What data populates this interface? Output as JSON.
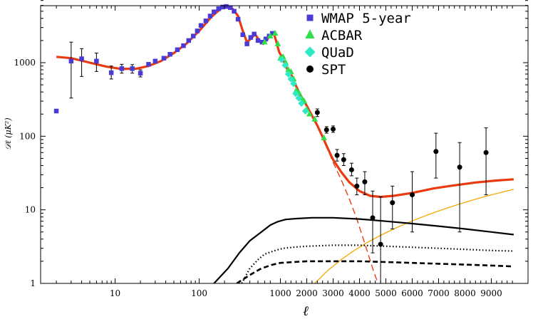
{
  "chart_data": {
    "type": "scatter",
    "title": "",
    "xlabel": "ℓ",
    "ylabel": "𝒟ℓ  (μK²)",
    "x_scale": "log-then-linear (log for ℓ < 800, linear above)",
    "y_scale": "log",
    "xlim": [
      2,
      9850
    ],
    "ylim": [
      1,
      7000
    ],
    "grid": false,
    "legend_position": "top-right",
    "x_tick_labels": [
      "10",
      "100",
      "1000",
      "2000",
      "3000",
      "4000",
      "5000",
      "6000",
      "7000",
      "8000",
      "9000"
    ],
    "x_ticks": [
      10,
      100,
      1000,
      2000,
      3000,
      4000,
      5000,
      6000,
      7000,
      8000,
      9000
    ],
    "y_tick_labels": [
      "1",
      "10",
      "100",
      "1000"
    ],
    "y_ticks": [
      1,
      10,
      100,
      1000
    ],
    "series": [
      {
        "name": "WMAP 5-year",
        "marker": "square",
        "color": "#4a3bd6",
        "points": [
          {
            "x": 2,
            "y": 220
          },
          {
            "x": 3,
            "y": 1050,
            "lo": 330,
            "hi": 1900
          },
          {
            "x": 4,
            "y": 1130,
            "lo": 650,
            "hi": 1550
          },
          {
            "x": 6,
            "y": 1050,
            "lo": 760,
            "hi": 1350
          },
          {
            "x": 9,
            "y": 730,
            "lo": 600,
            "hi": 900
          },
          {
            "x": 12,
            "y": 830,
            "lo": 720,
            "hi": 950
          },
          {
            "x": 16,
            "y": 830,
            "lo": 720,
            "hi": 940
          },
          {
            "x": 20,
            "y": 720,
            "lo": 640,
            "hi": 800
          },
          {
            "x": 25,
            "y": 950
          },
          {
            "x": 30,
            "y": 1050
          },
          {
            "x": 38,
            "y": 1150
          },
          {
            "x": 45,
            "y": 1300
          },
          {
            "x": 55,
            "y": 1500
          },
          {
            "x": 65,
            "y": 1700
          },
          {
            "x": 75,
            "y": 2000
          },
          {
            "x": 85,
            "y": 2300
          },
          {
            "x": 95,
            "y": 2700
          },
          {
            "x": 105,
            "y": 3200
          },
          {
            "x": 120,
            "y": 3700
          },
          {
            "x": 135,
            "y": 4300
          },
          {
            "x": 150,
            "y": 4900
          },
          {
            "x": 170,
            "y": 5400
          },
          {
            "x": 190,
            "y": 5700
          },
          {
            "x": 210,
            "y": 5800
          },
          {
            "x": 235,
            "y": 5600
          },
          {
            "x": 260,
            "y": 5000
          },
          {
            "x": 290,
            "y": 3900
          },
          {
            "x": 330,
            "y": 2400
          },
          {
            "x": 370,
            "y": 1800
          },
          {
            "x": 410,
            "y": 2200
          },
          {
            "x": 450,
            "y": 2450
          },
          {
            "x": 500,
            "y": 2000
          },
          {
            "x": 560,
            "y": 1900
          },
          {
            "x": 620,
            "y": 2100
          },
          {
            "x": 680,
            "y": 2300
          },
          {
            "x": 740,
            "y": 2500
          }
        ]
      },
      {
        "name": "ACBAR",
        "marker": "triangle",
        "color": "#2fe04a",
        "points": [
          {
            "x": 600,
            "y": 1900
          },
          {
            "x": 700,
            "y": 2300
          },
          {
            "x": 800,
            "y": 2500
          },
          {
            "x": 900,
            "y": 1800
          },
          {
            "x": 1000,
            "y": 1150
          },
          {
            "x": 1100,
            "y": 1200
          },
          {
            "x": 1200,
            "y": 1000
          },
          {
            "x": 1300,
            "y": 800
          },
          {
            "x": 1400,
            "y": 750
          },
          {
            "x": 1500,
            "y": 600
          },
          {
            "x": 1600,
            "y": 420
          },
          {
            "x": 1700,
            "y": 390
          },
          {
            "x": 1800,
            "y": 330
          },
          {
            "x": 1900,
            "y": 300
          },
          {
            "x": 2000,
            "y": 230
          },
          {
            "x": 2100,
            "y": 200
          },
          {
            "x": 2300,
            "y": 170
          },
          {
            "x": 2650,
            "y": 95
          }
        ]
      },
      {
        "name": "QUaD",
        "marker": "diamond",
        "color": "#2fe8c4",
        "points": [
          {
            "x": 1050,
            "y": 1100
          },
          {
            "x": 1180,
            "y": 920
          },
          {
            "x": 1300,
            "y": 700
          },
          {
            "x": 1400,
            "y": 600
          },
          {
            "x": 1500,
            "y": 520
          },
          {
            "x": 1580,
            "y": 380
          },
          {
            "x": 1700,
            "y": 330
          },
          {
            "x": 1800,
            "y": 280
          },
          {
            "x": 1950,
            "y": 220
          }
        ]
      },
      {
        "name": "SPT",
        "marker": "circle",
        "color": "#000000",
        "points": [
          {
            "x": 2400,
            "y": 210,
            "lo": 185,
            "hi": 235
          },
          {
            "x": 2750,
            "y": 122,
            "lo": 110,
            "hi": 135
          },
          {
            "x": 3000,
            "y": 125,
            "lo": 113,
            "hi": 138
          },
          {
            "x": 3150,
            "y": 55,
            "lo": 46,
            "hi": 66
          },
          {
            "x": 3400,
            "y": 48,
            "lo": 40,
            "hi": 58
          },
          {
            "x": 3700,
            "y": 35,
            "lo": 29,
            "hi": 43
          },
          {
            "x": 3900,
            "y": 21,
            "lo": 16,
            "hi": 27
          },
          {
            "x": 4200,
            "y": 24,
            "lo": 16,
            "hi": 33
          },
          {
            "x": 4500,
            "y": 7.8,
            "lo": 2.6,
            "hi": 18
          },
          {
            "x": 4800,
            "y": 3.4,
            "lo": 1.0,
            "hi": 15
          },
          {
            "x": 5250,
            "y": 12.5,
            "lo": 5.5,
            "hi": 21
          },
          {
            "x": 6000,
            "y": 16,
            "lo": 5.0,
            "hi": 33
          },
          {
            "x": 6900,
            "y": 62,
            "lo": 27,
            "hi": 110
          },
          {
            "x": 7800,
            "y": 38,
            "lo": 5.0,
            "hi": 82
          },
          {
            "x": 8800,
            "y": 60,
            "lo": 16,
            "hi": 130
          }
        ]
      }
    ],
    "curves": [
      {
        "style": "solid-thick",
        "color": "#ea3a10",
        "points": [
          [
            2,
            1200
          ],
          [
            3,
            1150
          ],
          [
            5,
            1000
          ],
          [
            8,
            880
          ],
          [
            12,
            820
          ],
          [
            18,
            830
          ],
          [
            25,
            900
          ],
          [
            35,
            1050
          ],
          [
            50,
            1350
          ],
          [
            70,
            1800
          ],
          [
            100,
            2700
          ],
          [
            140,
            4200
          ],
          [
            180,
            5400
          ],
          [
            215,
            5800
          ],
          [
            250,
            5400
          ],
          [
            290,
            4300
          ],
          [
            330,
            2700
          ],
          [
            370,
            1900
          ],
          [
            420,
            2150
          ],
          [
            460,
            2450
          ],
          [
            520,
            2000
          ],
          [
            580,
            1800
          ],
          [
            650,
            2100
          ],
          [
            720,
            2450
          ],
          [
            780,
            2400
          ],
          [
            850,
            1900
          ],
          [
            950,
            1400
          ],
          [
            1050,
            1200
          ],
          [
            1150,
            1000
          ],
          [
            1250,
            830
          ],
          [
            1400,
            700
          ],
          [
            1550,
            520
          ],
          [
            1700,
            400
          ],
          [
            1850,
            320
          ],
          [
            2000,
            260
          ],
          [
            2200,
            190
          ],
          [
            2400,
            140
          ],
          [
            2600,
            98
          ],
          [
            2800,
            68
          ],
          [
            3000,
            48
          ],
          [
            3300,
            33
          ],
          [
            3600,
            24
          ],
          [
            4000,
            18
          ],
          [
            4400,
            15.5
          ],
          [
            4800,
            15
          ],
          [
            5300,
            15.5
          ],
          [
            6000,
            17
          ],
          [
            6800,
            19.5
          ],
          [
            7600,
            21.5
          ],
          [
            8400,
            23.5
          ],
          [
            9200,
            25
          ],
          [
            9850,
            26
          ]
        ]
      },
      {
        "style": "dashed-thin",
        "color": "#ea3a10",
        "points": [
          [
            2400,
            140
          ],
          [
            2600,
            96
          ],
          [
            2800,
            66
          ],
          [
            3000,
            44
          ],
          [
            3300,
            26
          ],
          [
            3600,
            14.5
          ],
          [
            3900,
            7.5
          ],
          [
            4200,
            3.5
          ],
          [
            4500,
            1.6
          ],
          [
            4700,
            1.0
          ]
        ]
      },
      {
        "style": "solid-thin",
        "color": "#f5a800",
        "points": [
          [
            2300,
            1.0
          ],
          [
            2800,
            1.5
          ],
          [
            3300,
            2.1
          ],
          [
            3800,
            2.8
          ],
          [
            4300,
            3.6
          ],
          [
            4800,
            4.5
          ],
          [
            5300,
            5.5
          ],
          [
            5800,
            6.6
          ],
          [
            6300,
            7.8
          ],
          [
            6800,
            9.1
          ],
          [
            7300,
            10.5
          ],
          [
            7800,
            12.0
          ],
          [
            8300,
            13.6
          ],
          [
            8800,
            15.3
          ],
          [
            9300,
            17.0
          ],
          [
            9850,
            19.0
          ]
        ]
      },
      {
        "style": "solid",
        "color": "#000000",
        "points": [
          [
            150,
            1.0
          ],
          [
            220,
            1.6
          ],
          [
            300,
            2.6
          ],
          [
            400,
            3.8
          ],
          [
            550,
            5.0
          ],
          [
            700,
            6.2
          ],
          [
            900,
            6.9
          ],
          [
            1200,
            7.4
          ],
          [
            1600,
            7.6
          ],
          [
            2200,
            7.8
          ],
          [
            3000,
            7.8
          ],
          [
            4000,
            7.5
          ],
          [
            5000,
            7.0
          ],
          [
            6000,
            6.5
          ],
          [
            7000,
            6.0
          ],
          [
            8000,
            5.5
          ],
          [
            9000,
            5.0
          ],
          [
            9850,
            4.6
          ]
        ]
      },
      {
        "style": "dotted",
        "color": "#000000",
        "points": [
          [
            320,
            1.0
          ],
          [
            400,
            1.6
          ],
          [
            500,
            2.1
          ],
          [
            600,
            2.5
          ],
          [
            800,
            2.8
          ],
          [
            1100,
            3.0
          ],
          [
            1500,
            3.1
          ],
          [
            2000,
            3.2
          ],
          [
            3000,
            3.3
          ],
          [
            4000,
            3.3
          ],
          [
            5000,
            3.2
          ],
          [
            6000,
            3.1
          ],
          [
            7000,
            3.0
          ],
          [
            8000,
            2.9
          ],
          [
            9000,
            2.8
          ],
          [
            9850,
            2.75
          ]
        ]
      },
      {
        "style": "dashed",
        "color": "#000000",
        "points": [
          [
            280,
            1.0
          ],
          [
            400,
            1.3
          ],
          [
            550,
            1.6
          ],
          [
            750,
            1.8
          ],
          [
            1000,
            1.9
          ],
          [
            1500,
            1.95
          ],
          [
            2000,
            2.0
          ],
          [
            3000,
            2.0
          ],
          [
            4000,
            2.0
          ],
          [
            5000,
            1.95
          ],
          [
            6000,
            1.9
          ],
          [
            7000,
            1.85
          ],
          [
            8000,
            1.8
          ],
          [
            9000,
            1.75
          ],
          [
            9850,
            1.7
          ]
        ]
      }
    ],
    "legend": [
      {
        "label": "WMAP 5-year",
        "marker": "square",
        "color": "#4a3bd6"
      },
      {
        "label": "ACBAR",
        "marker": "triangle",
        "color": "#2fe04a"
      },
      {
        "label": "QUaD",
        "marker": "diamond",
        "color": "#2fe8c4"
      },
      {
        "label": "SPT",
        "marker": "circle",
        "color": "#000000"
      }
    ]
  }
}
